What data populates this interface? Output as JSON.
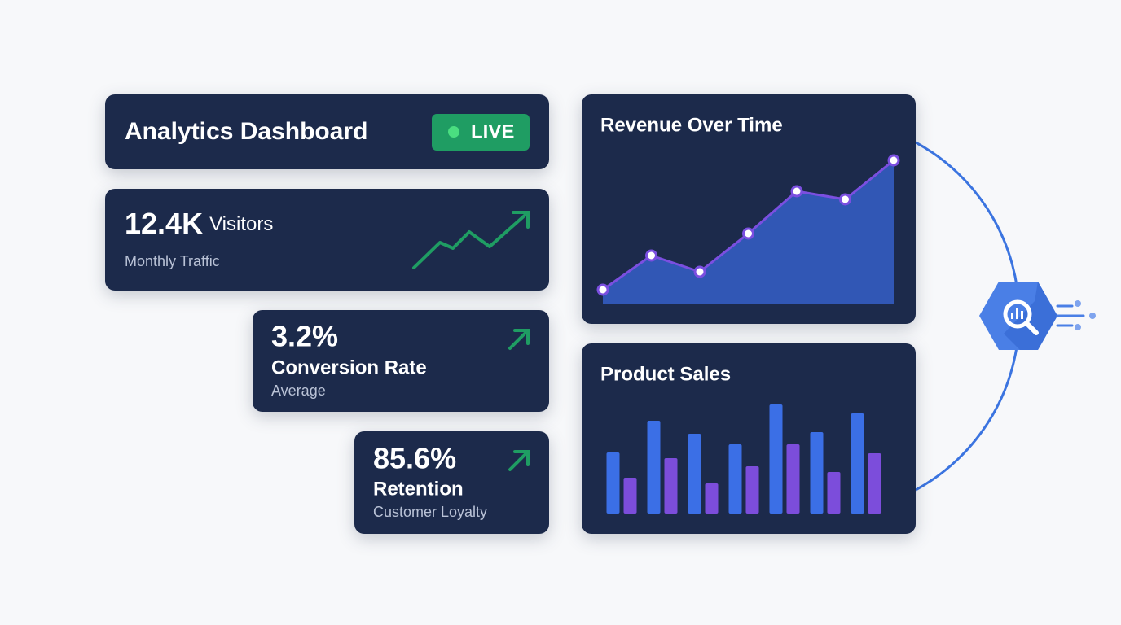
{
  "header": {
    "title": "Analytics Dashboard",
    "status": "LIVE"
  },
  "metrics": [
    {
      "value": "12.4K",
      "unit": "Visitors",
      "caption": "Monthly Traffic"
    },
    {
      "value": "3.2%",
      "label": "Conversion Rate",
      "caption": "Average"
    },
    {
      "value": "85.6%",
      "label": "Retention",
      "caption": "Customer Loyalty"
    }
  ],
  "chart_data": [
    {
      "type": "area",
      "title": "Revenue Over Time",
      "categories": [
        null,
        null,
        null,
        null,
        null,
        null,
        null
      ],
      "values": [
        18,
        60,
        40,
        87,
        139,
        129,
        177
      ],
      "color": "#3157b5",
      "line_color": "#7b4fe0",
      "ylim": [
        0,
        200
      ]
    },
    {
      "type": "bar",
      "title": "Product Sales",
      "categories": [
        null,
        null,
        null,
        null,
        null,
        null,
        null
      ],
      "series": [
        {
          "color": "#3b6fe6",
          "values": [
            75,
            114,
            98,
            85,
            134,
            100,
            123
          ]
        },
        {
          "color": "#7c4ddb",
          "values": [
            44,
            68,
            37,
            58,
            85,
            51,
            74
          ]
        }
      ],
      "ylim": [
        0,
        140
      ]
    }
  ]
}
